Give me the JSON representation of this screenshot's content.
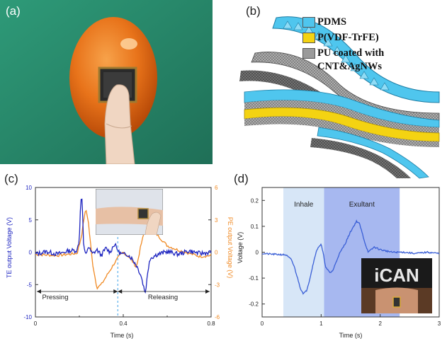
{
  "panel_a": {
    "label": "(a)"
  },
  "panel_b": {
    "label": "(b)",
    "legend": [
      {
        "text": "PDMS",
        "color": "#4fc6ee"
      },
      {
        "text": "P(VDF-TrFE)",
        "color": "#f4d312"
      },
      {
        "text": "PU coated with",
        "text2": "CNT&AgNWs",
        "color": "#9a9a9a"
      }
    ]
  },
  "panel_c": {
    "label": "(c)",
    "y_left_label": "TE output Voltage (V)",
    "y_right_label": "PE output Voltage (V)",
    "x_label": "Time (s)",
    "x_ticks": [
      "0",
      "0.4",
      "0.8"
    ],
    "y_left_ticks": [
      "10",
      "5",
      "0",
      "-5",
      "-10"
    ],
    "y_right_ticks": [
      "6",
      "3",
      "0",
      "-3",
      "-6"
    ],
    "annotations": {
      "pressing": "Pressing",
      "releasing": "Releasing"
    },
    "colors": {
      "te": "#1d24c0",
      "pe": "#f08a24"
    }
  },
  "panel_d": {
    "label": "(d)",
    "y_label": "Voltage (V)",
    "x_label": "Time (s)",
    "x_ticks": [
      "0",
      "1",
      "2",
      "3"
    ],
    "y_ticks": [
      "0.2",
      "0.1",
      "0",
      "-0.1",
      "-0.2"
    ],
    "inhale": "Inhale",
    "exultant": "Exultant",
    "shirt_text": "iCAN",
    "colors": {
      "line": "#3a5fd6",
      "inhale_bg": "#d7e6f7",
      "exultant_bg": "#a7b8f0"
    }
  },
  "chart_data": [
    {
      "type": "line",
      "title": "",
      "xlabel": "Time (s)",
      "ylabel": "TE output Voltage (V)",
      "y2label": "PE output Voltage (V)",
      "xlim": [
        0,
        0.8
      ],
      "ylim": [
        -10,
        10
      ],
      "y2lim": [
        -6,
        6
      ],
      "series": [
        {
          "name": "TE",
          "axis": "left",
          "x": [
            0,
            0.05,
            0.1,
            0.15,
            0.19,
            0.2,
            0.205,
            0.21,
            0.215,
            0.22,
            0.23,
            0.24,
            0.26,
            0.28,
            0.3,
            0.32,
            0.34,
            0.36,
            0.38,
            0.4,
            0.42,
            0.44,
            0.46,
            0.48,
            0.5,
            0.52,
            0.55,
            0.6,
            0.65,
            0.7,
            0.75,
            0.8
          ],
          "y": [
            -0.3,
            0.1,
            -0.3,
            0.2,
            0.3,
            2.0,
            7.0,
            9.2,
            6.0,
            0.5,
            -0.4,
            0.9,
            -0.3,
            0.4,
            -0.5,
            0.6,
            0.0,
            1.3,
            0.0,
            -0.4,
            -0.3,
            -1.0,
            -2.0,
            -3.5,
            -6.3,
            -1.0,
            -0.4,
            0.1,
            -0.3,
            0.2,
            -0.2,
            0.0
          ]
        },
        {
          "name": "PE",
          "axis": "right",
          "x": [
            0,
            0.1,
            0.19,
            0.21,
            0.22,
            0.23,
            0.24,
            0.26,
            0.28,
            0.3,
            0.33,
            0.36,
            0.38,
            0.4,
            0.43,
            0.46,
            0.48,
            0.5,
            0.53,
            0.56,
            0.6,
            0.65,
            0.7,
            0.75,
            0.8
          ],
          "y": [
            -0.2,
            -0.3,
            -0.1,
            1.5,
            3.0,
            4.0,
            3.0,
            -1.0,
            -3.3,
            -3.0,
            -2.0,
            -1.0,
            -0.4,
            0.0,
            -0.5,
            -1.4,
            0.6,
            2.2,
            2.1,
            1.5,
            0.6,
            0.2,
            -0.1,
            -0.4,
            -0.3
          ]
        }
      ]
    },
    {
      "type": "line",
      "title": "",
      "xlabel": "Time (s)",
      "ylabel": "Voltage (V)",
      "xlim": [
        0,
        3
      ],
      "ylim": [
        -0.25,
        0.25
      ],
      "shaded": [
        {
          "label": "Inhale",
          "x": [
            0.36,
            1.05
          ]
        },
        {
          "label": "Exultant",
          "x": [
            1.05,
            2.33
          ]
        }
      ],
      "series": [
        {
          "name": "Voltage",
          "x": [
            0,
            0.2,
            0.4,
            0.5,
            0.55,
            0.6,
            0.65,
            0.7,
            0.75,
            0.8,
            0.85,
            0.9,
            0.95,
            1.0,
            1.03,
            1.08,
            1.15,
            1.2,
            1.25,
            1.3,
            1.4,
            1.5,
            1.6,
            1.65,
            1.7,
            1.75,
            1.8,
            1.9,
            2.0,
            2.2,
            2.4,
            2.6,
            2.8,
            3.0
          ],
          "y": [
            -0.005,
            -0.008,
            -0.01,
            -0.03,
            -0.06,
            -0.1,
            -0.14,
            -0.16,
            -0.15,
            -0.11,
            -0.06,
            -0.01,
            0.02,
            0.03,
            0.0,
            -0.06,
            -0.08,
            -0.07,
            -0.04,
            -0.01,
            0.03,
            0.08,
            0.12,
            0.11,
            0.07,
            0.03,
            0.0,
            0.02,
            0.01,
            0.0,
            0.0,
            -0.005,
            0.0,
            -0.005
          ]
        }
      ]
    }
  ]
}
